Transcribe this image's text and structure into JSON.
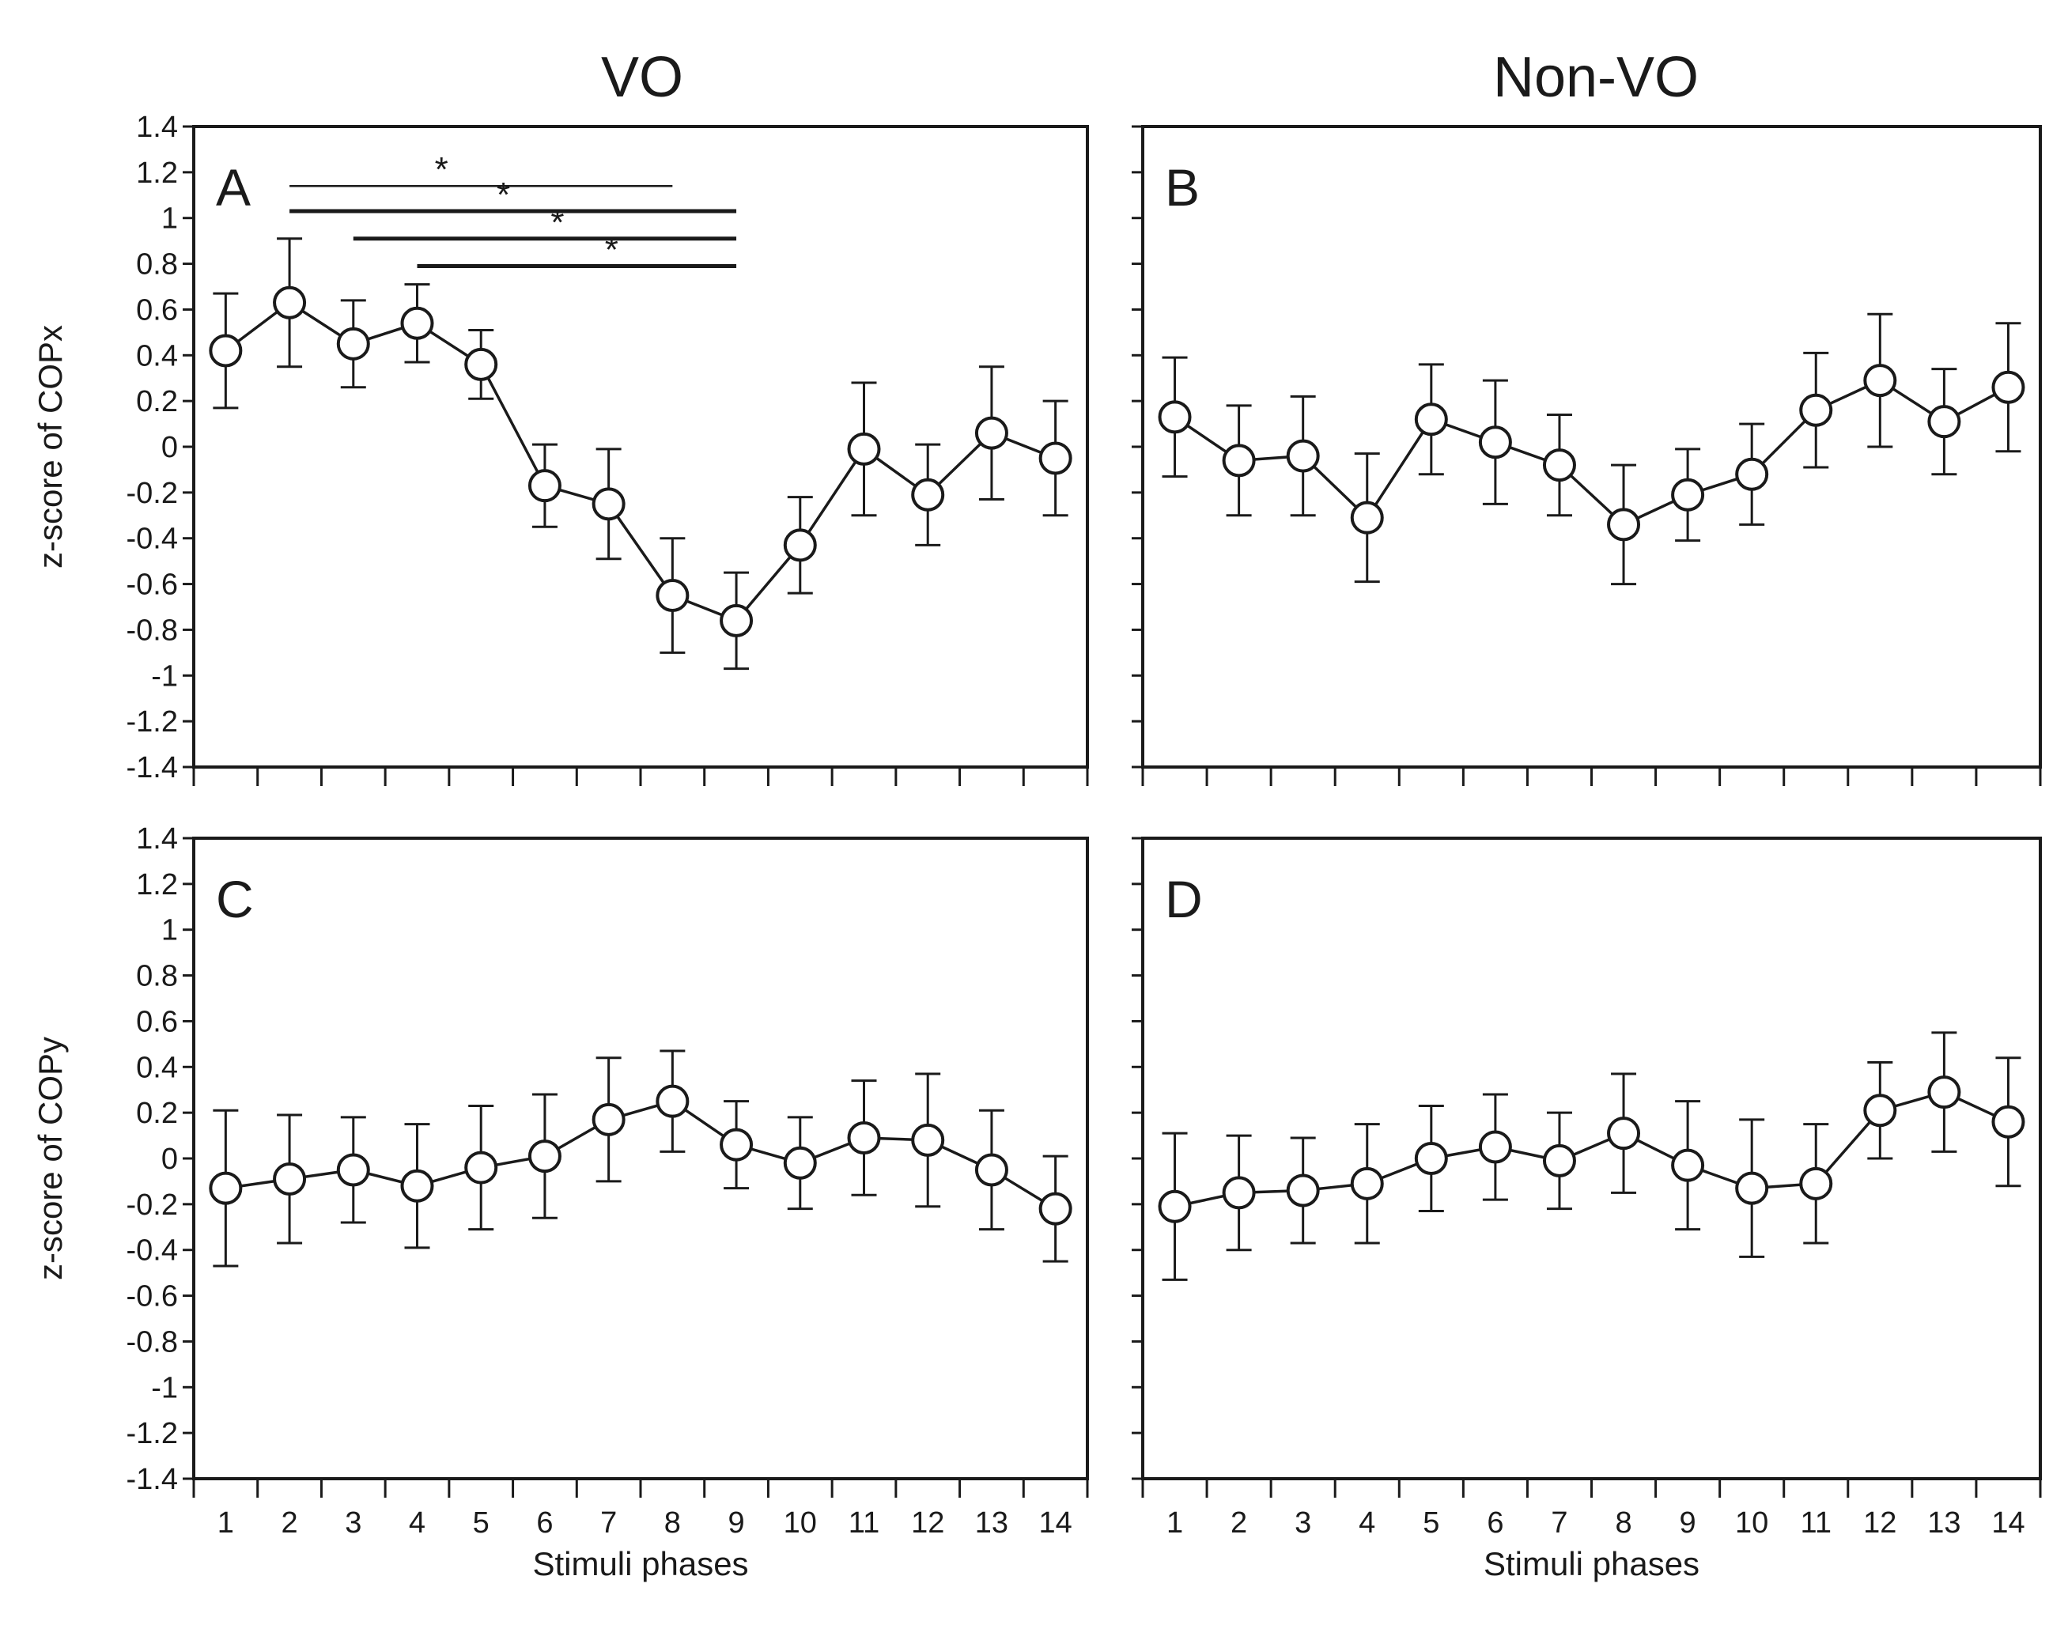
{
  "column_titles": [
    "VO",
    "Non-VO"
  ],
  "chart_data": [
    {
      "type": "line",
      "panel": "A",
      "group": "VO",
      "ylabel": "z-score of COPx",
      "xlabel": "",
      "ylim": [
        -1.4,
        1.4
      ],
      "yticks": [
        "1.4",
        "1.2",
        "1",
        "0.8",
        "0.6",
        "0.4",
        "0.2",
        "0",
        "-0.2",
        "-0.4",
        "-0.6",
        "-0.8",
        "-1",
        "-1.2",
        "-1.4"
      ],
      "x": [
        1,
        2,
        3,
        4,
        5,
        6,
        7,
        8,
        9,
        10,
        11,
        12,
        13,
        14
      ],
      "xticklabels": [],
      "values": [
        0.42,
        0.63,
        0.45,
        0.54,
        0.36,
        -0.17,
        -0.25,
        -0.65,
        -0.76,
        -0.43,
        -0.01,
        -0.21,
        0.06,
        -0.05
      ],
      "errors": [
        0.25,
        0.28,
        0.19,
        0.17,
        0.15,
        0.18,
        0.24,
        0.25,
        0.21,
        0.21,
        0.29,
        0.22,
        0.29,
        0.25
      ],
      "significance": [
        {
          "x1": 2,
          "x2": 8,
          "y": 1.14,
          "label": "*",
          "weight": "thin"
        },
        {
          "x1": 2,
          "x2": 9,
          "y": 1.03,
          "label": "*",
          "weight": "bold"
        },
        {
          "x1": 3,
          "x2": 9,
          "y": 0.91,
          "label": "*",
          "weight": "bold"
        },
        {
          "x1": 4,
          "x2": 9,
          "y": 0.79,
          "label": "*",
          "weight": "bold"
        }
      ]
    },
    {
      "type": "line",
      "panel": "B",
      "group": "Non-VO",
      "ylabel": "",
      "xlabel": "",
      "ylim": [
        -1.4,
        1.4
      ],
      "yticks": [],
      "x": [
        1,
        2,
        3,
        4,
        5,
        6,
        7,
        8,
        9,
        10,
        11,
        12,
        13,
        14
      ],
      "xticklabels": [],
      "values": [
        0.13,
        -0.06,
        -0.04,
        -0.31,
        0.12,
        0.02,
        -0.08,
        -0.34,
        -0.21,
        -0.12,
        0.16,
        0.29,
        0.11,
        0.26
      ],
      "errors": [
        0.26,
        0.24,
        0.26,
        0.28,
        0.24,
        0.27,
        0.22,
        0.26,
        0.2,
        0.22,
        0.25,
        0.29,
        0.23,
        0.28
      ],
      "significance": []
    },
    {
      "type": "line",
      "panel": "C",
      "group": "VO",
      "ylabel": "z-score of COPy",
      "xlabel": "Stimuli phases",
      "ylim": [
        -1.4,
        1.4
      ],
      "yticks": [
        "1.4",
        "1.2",
        "1",
        "0.8",
        "0.6",
        "0.4",
        "0.2",
        "0",
        "-0.2",
        "-0.4",
        "-0.6",
        "-0.8",
        "-1",
        "-1.2",
        "-1.4"
      ],
      "x": [
        1,
        2,
        3,
        4,
        5,
        6,
        7,
        8,
        9,
        10,
        11,
        12,
        13,
        14
      ],
      "xticklabels": [
        "1",
        "2",
        "3",
        "4",
        "5",
        "6",
        "7",
        "8",
        "9",
        "10",
        "11",
        "12",
        "13",
        "14"
      ],
      "values": [
        -0.13,
        -0.09,
        -0.05,
        -0.12,
        -0.04,
        0.01,
        0.17,
        0.25,
        0.06,
        -0.02,
        0.09,
        0.08,
        -0.05,
        -0.22
      ],
      "errors": [
        0.34,
        0.28,
        0.23,
        0.27,
        0.27,
        0.27,
        0.27,
        0.22,
        0.19,
        0.2,
        0.25,
        0.29,
        0.26,
        0.23
      ],
      "significance": []
    },
    {
      "type": "line",
      "panel": "D",
      "group": "Non-VO",
      "ylabel": "",
      "xlabel": "Stimuli phases",
      "ylim": [
        -1.4,
        1.4
      ],
      "yticks": [],
      "x": [
        1,
        2,
        3,
        4,
        5,
        6,
        7,
        8,
        9,
        10,
        11,
        12,
        13,
        14
      ],
      "xticklabels": [
        "1",
        "2",
        "3",
        "4",
        "5",
        "6",
        "7",
        "8",
        "9",
        "10",
        "11",
        "12",
        "13",
        "14"
      ],
      "values": [
        -0.21,
        -0.15,
        -0.14,
        -0.11,
        0.0,
        0.05,
        -0.01,
        0.11,
        -0.03,
        -0.13,
        -0.11,
        0.21,
        0.29,
        0.16
      ],
      "errors": [
        0.32,
        0.25,
        0.23,
        0.26,
        0.23,
        0.23,
        0.21,
        0.26,
        0.28,
        0.3,
        0.26,
        0.21,
        0.26,
        0.28
      ],
      "significance": []
    }
  ]
}
